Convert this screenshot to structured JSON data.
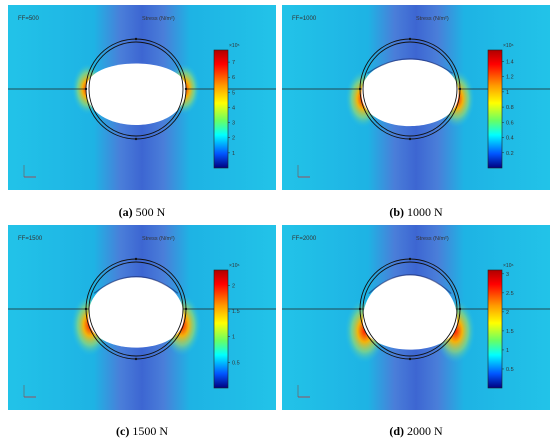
{
  "panels": [
    {
      "id": "a",
      "ff_label": "FF=500",
      "stress_label": "Stress (N/m²)",
      "exponent": "×10⁵",
      "scale_ticks": [
        "7",
        "6",
        "5",
        "4",
        "3",
        "2",
        "1"
      ],
      "scale_max": 7.8,
      "scale_vals": [
        7,
        6,
        5,
        4,
        3,
        2,
        1
      ],
      "caption_letter": "(a)",
      "caption_text": " 500 N",
      "contact_flatness": 0.0,
      "hole_drop": 0
    },
    {
      "id": "b",
      "ff_label": "FF=1000",
      "stress_label": "Stress (N/m²)",
      "exponent": "×10⁶",
      "scale_ticks": [
        "1.4",
        "1.2",
        "1",
        "0.8",
        "0.6",
        "0.4",
        "0.2"
      ],
      "scale_max": 1.55,
      "scale_vals": [
        1.4,
        1.2,
        1,
        0.8,
        0.6,
        0.4,
        0.2
      ],
      "caption_letter": "(b)",
      "caption_text": " 1000 N",
      "contact_flatness": 0.35,
      "hole_drop": 8
    },
    {
      "id": "c",
      "ff_label": "FF=1500",
      "stress_label": "Stress (N/m²)",
      "exponent": "×10⁶",
      "scale_ticks": [
        "2",
        "1.5",
        "1",
        "0.5"
      ],
      "scale_max": 2.3,
      "scale_vals": [
        2,
        1.5,
        1,
        0.5
      ],
      "caption_letter": "(c)",
      "caption_text": " 1500 N",
      "contact_flatness": 0.55,
      "hole_drop": 14
    },
    {
      "id": "d",
      "ff_label": "FF=2000",
      "stress_label": "Stress (N/m²)",
      "exponent": "×10⁶",
      "scale_ticks": [
        "3",
        "2.5",
        "2",
        "1.5",
        "1",
        "0.5"
      ],
      "scale_max": 3.1,
      "scale_vals": [
        3,
        2.5,
        2,
        1.5,
        1,
        0.5
      ],
      "caption_letter": "(d)",
      "caption_text": " 2000 N",
      "contact_flatness": 0.7,
      "hole_drop": 20
    }
  ],
  "colors": {
    "field": "#1fb8e6",
    "field_dark": "#3d6fd6",
    "hot": "#ff2a00",
    "warm": "#ffd200"
  }
}
